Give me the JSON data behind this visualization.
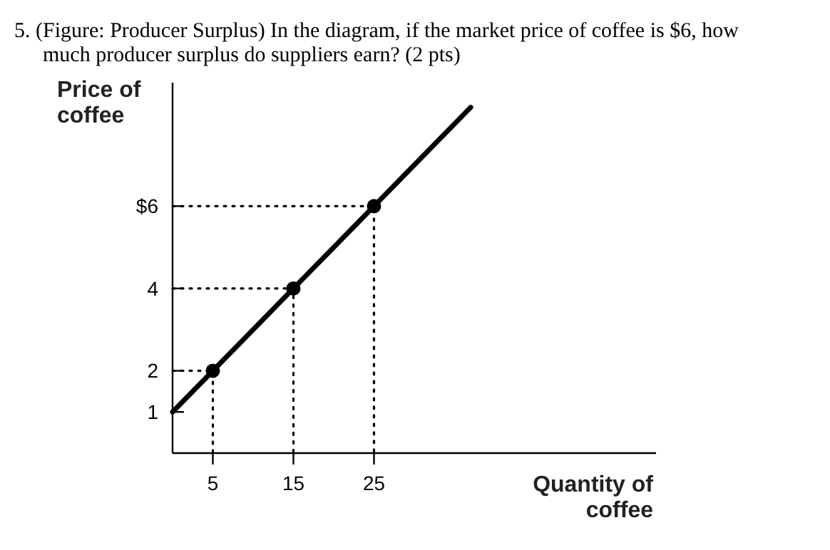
{
  "chart_data": {
    "type": "line",
    "title": "5. (Figure: Producer Surplus) In the diagram, if the market price of coffee is $6, how much producer surplus do suppliers earn? (2 pts)",
    "xlabel": "Quantity of coffee",
    "ylabel": "Price of coffee",
    "xlim": [
      0,
      60
    ],
    "ylim": [
      0,
      9
    ],
    "xticks": [
      5,
      15,
      25
    ],
    "yticks": [
      1,
      2,
      4,
      {
        "value": 6,
        "label": "$6"
      }
    ],
    "series": [
      {
        "type": "line",
        "color": "#000000",
        "x": [
          0,
          5,
          15,
          25,
          37
        ],
        "values": [
          1,
          2,
          4,
          6,
          8.4
        ],
        "marker": "none",
        "line_style": "solid"
      },
      {
        "type": "scatter",
        "color": "#000000",
        "x": [
          5,
          15,
          25
        ],
        "values": [
          2,
          4,
          6
        ],
        "marker": "circle"
      },
      {
        "type": "line",
        "color": "#000000",
        "x": [
          0,
          5,
          5
        ],
        "values": [
          2,
          2,
          0
        ],
        "marker": "none",
        "line_style": "dotted"
      },
      {
        "type": "line",
        "color": "#000000",
        "x": [
          0,
          15,
          15
        ],
        "values": [
          4,
          4,
          0
        ],
        "marker": "none",
        "line_style": "dotted"
      },
      {
        "type": "line",
        "color": "#000000",
        "x": [
          0,
          25,
          25
        ],
        "values": [
          6,
          6,
          0
        ],
        "marker": "none",
        "line_style": "dotted"
      }
    ]
  }
}
